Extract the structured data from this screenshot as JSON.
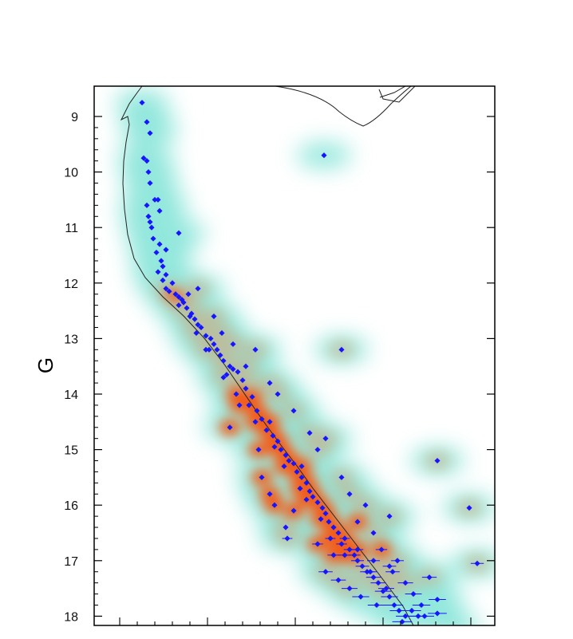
{
  "chart_data": {
    "type": "scatter",
    "title": "",
    "xlabel": "",
    "ylabel": "G",
    "ylim": [
      8.5,
      18.2
    ],
    "xlim": [
      0.0,
      2.25
    ],
    "y_inverted": true,
    "y_ticks": [
      9,
      10,
      11,
      12,
      13,
      14,
      15,
      16,
      17,
      18
    ],
    "x_tick_labels_visible": false,
    "colors": {
      "points": "#1515ff",
      "isochrone": "#222222",
      "density_low": "#7fe3d6",
      "density_high": "#ff4a00"
    },
    "series": [
      {
        "values": [
          [
            0.15,
            8.75
          ],
          [
            0.18,
            9.1
          ],
          [
            0.2,
            9.3
          ],
          [
            0.16,
            9.75
          ],
          [
            0.18,
            9.8
          ],
          [
            0.19,
            10.0
          ],
          [
            0.2,
            10.2
          ],
          [
            0.23,
            10.5
          ],
          [
            0.25,
            10.5
          ],
          [
            0.18,
            10.6
          ],
          [
            0.26,
            10.7
          ],
          [
            0.19,
            10.8
          ],
          [
            0.2,
            10.9
          ],
          [
            0.21,
            11.0
          ],
          [
            0.38,
            11.1
          ],
          [
            0.22,
            11.2
          ],
          [
            0.26,
            11.3
          ],
          [
            0.3,
            11.4
          ],
          [
            0.24,
            11.45
          ],
          [
            0.27,
            11.6
          ],
          [
            0.28,
            11.7
          ],
          [
            0.25,
            11.8
          ],
          [
            0.3,
            11.85
          ],
          [
            0.28,
            11.95
          ],
          [
            0.34,
            12.0
          ],
          [
            0.3,
            12.1
          ],
          [
            0.32,
            12.15
          ],
          [
            0.36,
            12.2
          ],
          [
            0.38,
            12.25
          ],
          [
            0.4,
            12.3
          ],
          [
            0.41,
            12.35
          ],
          [
            0.38,
            12.4
          ],
          [
            0.43,
            12.45
          ],
          [
            0.46,
            12.55
          ],
          [
            0.45,
            12.6
          ],
          [
            0.48,
            12.65
          ],
          [
            0.5,
            12.75
          ],
          [
            0.52,
            12.8
          ],
          [
            0.49,
            12.9
          ],
          [
            0.55,
            12.95
          ],
          [
            0.58,
            13.0
          ],
          [
            0.6,
            13.1
          ],
          [
            0.62,
            13.2
          ],
          [
            0.57,
            13.2
          ],
          [
            0.64,
            13.3
          ],
          [
            0.66,
            13.4
          ],
          [
            0.7,
            13.5
          ],
          [
            0.72,
            13.55
          ],
          [
            0.75,
            13.6
          ],
          [
            0.68,
            13.65
          ],
          [
            0.78,
            13.75
          ],
          [
            0.8,
            13.9
          ],
          [
            0.74,
            14.0
          ],
          [
            0.84,
            14.05
          ],
          [
            0.82,
            14.2
          ],
          [
            0.87,
            14.3
          ],
          [
            0.9,
            14.45
          ],
          [
            0.86,
            14.5
          ],
          [
            0.95,
            14.5
          ],
          [
            0.93,
            14.65
          ],
          [
            0.97,
            14.75
          ],
          [
            1.0,
            14.85
          ],
          [
            0.98,
            14.95
          ],
          [
            1.02,
            15.0
          ],
          [
            1.05,
            15.1
          ],
          [
            1.07,
            15.2
          ],
          [
            1.1,
            15.25
          ],
          [
            1.04,
            15.3
          ],
          [
            1.12,
            15.4
          ],
          [
            1.15,
            15.5
          ],
          [
            1.18,
            15.6
          ],
          [
            1.14,
            15.7
          ],
          [
            1.2,
            15.75
          ],
          [
            1.22,
            15.85
          ],
          [
            1.25,
            15.95
          ],
          [
            1.28,
            16.05
          ],
          [
            1.3,
            16.15
          ],
          [
            1.27,
            16.25
          ],
          [
            1.32,
            16.3
          ],
          [
            1.35,
            16.4
          ],
          [
            1.38,
            16.5
          ],
          [
            1.42,
            16.6
          ],
          [
            1.4,
            16.7
          ],
          [
            1.45,
            16.8
          ],
          [
            1.48,
            16.9
          ],
          [
            1.5,
            17.0
          ],
          [
            1.53,
            17.1
          ],
          [
            1.56,
            17.2
          ],
          [
            1.6,
            17.3
          ],
          [
            1.63,
            17.4
          ],
          [
            1.66,
            17.55
          ],
          [
            1.7,
            17.65
          ],
          [
            1.73,
            17.8
          ],
          [
            1.76,
            17.9
          ],
          [
            1.8,
            18.0
          ],
          [
            0.44,
            12.2
          ],
          [
            0.5,
            12.1
          ],
          [
            0.55,
            13.2
          ],
          [
            0.72,
            13.1
          ],
          [
            0.8,
            13.5
          ],
          [
            0.95,
            13.8
          ],
          [
            1.0,
            14.0
          ],
          [
            1.1,
            14.3
          ],
          [
            0.7,
            14.6
          ],
          [
            1.2,
            14.7
          ],
          [
            1.3,
            14.8
          ],
          [
            1.15,
            15.3
          ],
          [
            1.25,
            15.0
          ],
          [
            1.4,
            15.5
          ],
          [
            1.45,
            15.8
          ],
          [
            1.55,
            16.0
          ],
          [
            1.6,
            16.5
          ],
          [
            1.35,
            16.9
          ],
          [
            1.5,
            16.3
          ],
          [
            1.65,
            16.8
          ],
          [
            1.7,
            17.1
          ],
          [
            1.75,
            17.0
          ],
          [
            1.8,
            17.4
          ],
          [
            1.85,
            17.6
          ],
          [
            1.9,
            17.8
          ],
          [
            1.95,
            17.3
          ],
          [
            2.0,
            17.7
          ],
          [
            1.6,
            17.0
          ],
          [
            1.25,
            16.7
          ],
          [
            1.1,
            16.1
          ],
          [
            0.95,
            15.8
          ],
          [
            0.9,
            15.5
          ],
          [
            1.05,
            16.4
          ],
          [
            1.3,
            17.2
          ],
          [
            1.45,
            17.5
          ],
          [
            1.62,
            17.8
          ],
          [
            1.78,
            18.1
          ],
          [
            0.6,
            12.6
          ],
          [
            0.65,
            12.9
          ],
          [
            0.86,
            13.2
          ],
          [
            1.7,
            16.2
          ],
          [
            2.0,
            15.2
          ],
          [
            2.2,
            16.05
          ],
          [
            2.25,
            17.05
          ],
          [
            1.29,
            9.7
          ],
          [
            1.4,
            13.2
          ],
          [
            1.5,
            16.8
          ],
          [
            1.88,
            18.0
          ],
          [
            2.1,
            18.2
          ],
          [
            1.06,
            16.6
          ],
          [
            0.98,
            16.0
          ],
          [
            0.88,
            15.0
          ],
          [
            0.76,
            14.2
          ],
          [
            0.66,
            13.7
          ],
          [
            1.18,
            15.9
          ],
          [
            1.33,
            16.6
          ],
          [
            1.42,
            16.9
          ],
          [
            1.58,
            17.2
          ],
          [
            1.68,
            17.5
          ],
          [
            1.72,
            17.2
          ],
          [
            1.84,
            17.9
          ],
          [
            1.92,
            18.0
          ],
          [
            2.0,
            17.95
          ],
          [
            1.52,
            17.65
          ],
          [
            1.38,
            17.35
          ]
        ]
      }
    ]
  }
}
